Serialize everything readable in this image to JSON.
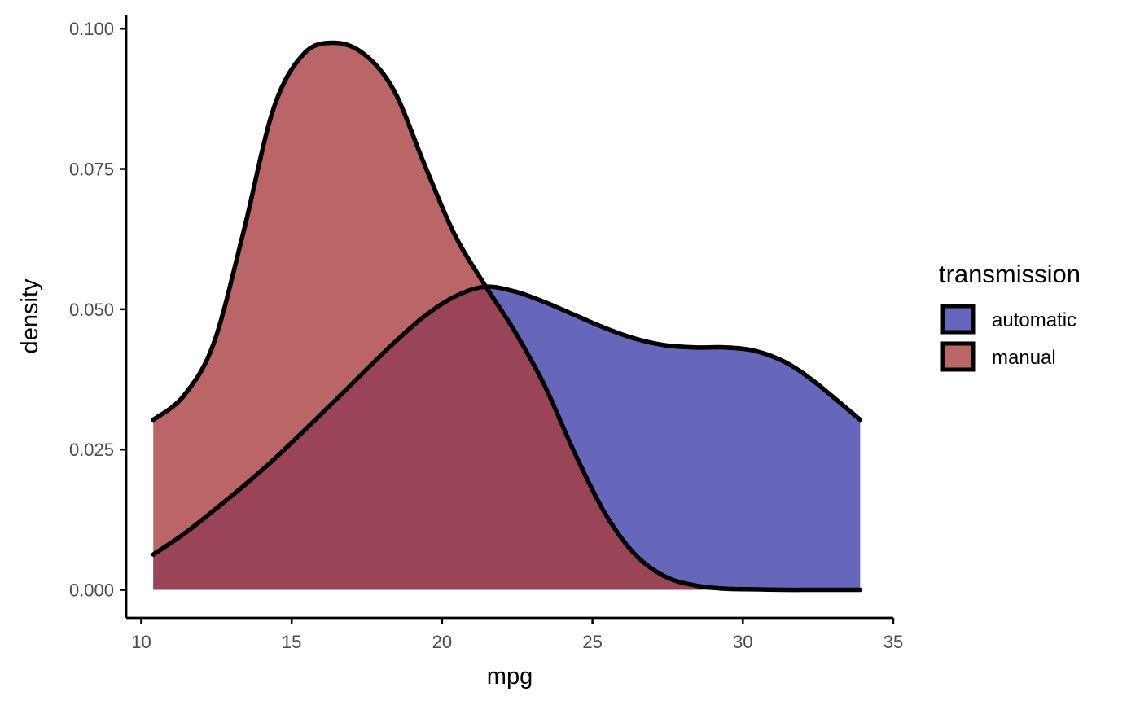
{
  "chart_data": {
    "type": "area",
    "subtype": "density",
    "title": "",
    "xlabel": "mpg",
    "ylabel": "density",
    "xlim": [
      9.5,
      35
    ],
    "ylim": [
      -0.005,
      0.1025
    ],
    "x_ticks": [
      10,
      15,
      20,
      25,
      30,
      35
    ],
    "x_tick_labels": [
      "10",
      "15",
      "20",
      "25",
      "30",
      "35"
    ],
    "y_ticks": [
      0,
      0.025,
      0.05,
      0.075,
      0.1
    ],
    "y_tick_labels": [
      "0.000",
      "0.025",
      "0.050",
      "0.075",
      "0.100"
    ],
    "grid": false,
    "legend": {
      "title": "transmission",
      "position": "right"
    },
    "series": [
      {
        "name": "automatic",
        "color": "#3B3CA8",
        "opacity": 0.78,
        "x": [
          10.4,
          11.4,
          12.4,
          13.4,
          14.4,
          15.4,
          16.4,
          17.4,
          18.4,
          19.4,
          20.4,
          21.4,
          22.4,
          23.4,
          24.4,
          25.4,
          26.4,
          27.4,
          28.4,
          29.4,
          30.4,
          31.4,
          32.4,
          33.9
        ],
        "y": [
          0.0063,
          0.0099,
          0.0141,
          0.0185,
          0.0232,
          0.0283,
          0.0335,
          0.0388,
          0.044,
          0.0487,
          0.0522,
          0.054,
          0.0532,
          0.0513,
          0.049,
          0.0467,
          0.0448,
          0.0436,
          0.0432,
          0.0432,
          0.0426,
          0.0406,
          0.037,
          0.0303
        ]
      },
      {
        "name": "manual",
        "color": "#A83B3B",
        "opacity": 0.78,
        "x": [
          10.4,
          11.4,
          12.4,
          13.4,
          14.4,
          15.4,
          16.4,
          17.4,
          18.4,
          19.4,
          20.4,
          21.4,
          22.4,
          23.4,
          24.4,
          25.4,
          26.4,
          27.4,
          28.4,
          29.4,
          30.4,
          31.4,
          32.4,
          33.9
        ],
        "y": [
          0.0303,
          0.0345,
          0.0438,
          0.0638,
          0.0858,
          0.0955,
          0.0975,
          0.0955,
          0.089,
          0.076,
          0.0635,
          0.0545,
          0.0462,
          0.0365,
          0.0245,
          0.0138,
          0.0064,
          0.0024,
          0.0008,
          0.0002,
          0.0001,
          0.0,
          0.0,
          0.0
        ]
      }
    ]
  }
}
